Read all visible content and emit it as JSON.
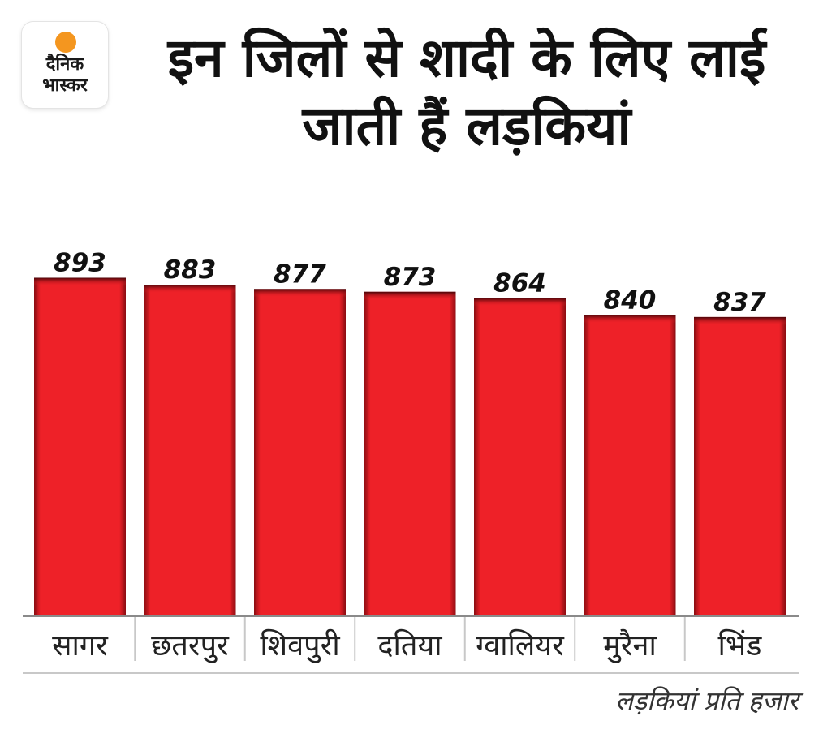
{
  "logo": {
    "line1": "दैनिक",
    "line2": "भास्कर"
  },
  "chart_data": {
    "type": "bar",
    "title": "इन जिलों से शादी के लिए लाई जाती हैं लड़कियां",
    "categories": [
      "सागर",
      "छतरपुर",
      "शिवपुरी",
      "दतिया",
      "ग्वालियर",
      "मुरैना",
      "भिंड"
    ],
    "values": [
      893,
      883,
      877,
      873,
      864,
      840,
      837
    ],
    "value_labels": [
      "893",
      "883",
      "877",
      "873",
      "864",
      "840",
      "837"
    ],
    "unit_note": "लड़कियां प्रति हजार",
    "ylim": [
      410,
      1000
    ],
    "bar_color": "#ee2128",
    "grid": false
  }
}
